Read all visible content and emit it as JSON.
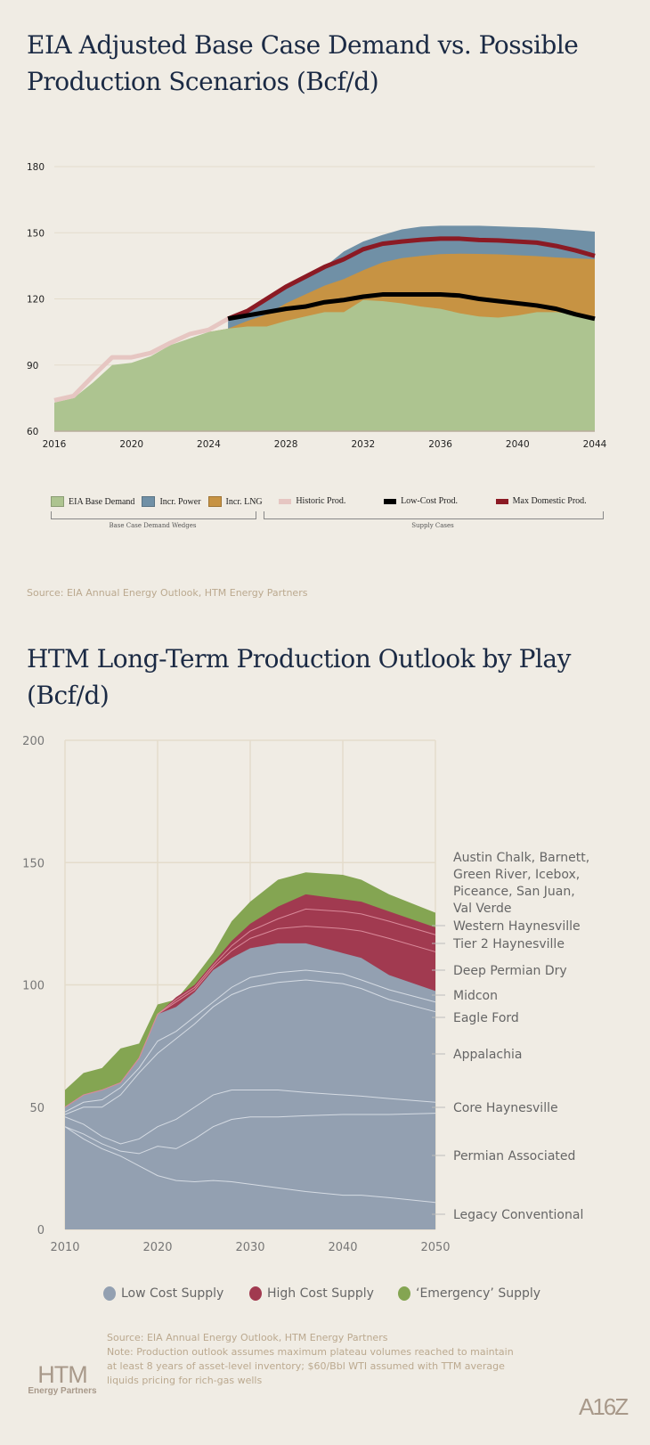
{
  "title1": "EIA Adjusted Base Case Demand vs. Possible Production Scenarios (Bcf/d)",
  "source1": "Source: EIA Annual Energy Outlook, HTM Energy Partners",
  "title2": "HTM Long-Term Production Outlook by Play (Bcf/d)",
  "footer": {
    "source": "Source: EIA Annual Energy Outlook, HTM Energy Partners",
    "note": "Note: Production outlook assumes maximum plateau volumes reached to maintain at least 8 years of asset-level inventory; $60/Bbl WTI assumed with TTM average liquids pricing for rich-gas wells"
  },
  "logos": {
    "htm_main": "HTM",
    "htm_sub": "Energy Partners",
    "a16z": "A16Z"
  },
  "colors": {
    "background": "#f0ece4",
    "base_demand": "#adc490",
    "incr_power": "#7090a6",
    "incr_lng": "#c79343",
    "historic": "#e6c6c2",
    "low_cost": "#000000",
    "max_domestic": "#8b1a24",
    "low_cost_supply": "#93a0b1",
    "high_cost_supply": "#a13a50",
    "emergency_supply": "#84a552"
  },
  "chart_data": [
    {
      "type": "area",
      "title": "EIA Adjusted Base Case Demand vs. Possible Production Scenarios (Bcf/d)",
      "xlim": [
        2016,
        2044
      ],
      "ylim": [
        60,
        180
      ],
      "xticks": [
        "2016",
        "2020",
        "2024",
        "2028",
        "2032",
        "2036",
        "2040",
        "2044"
      ],
      "yticks": [
        "60",
        "90",
        "120",
        "150",
        "180"
      ],
      "grid": true,
      "x": [
        2016,
        2017,
        2018,
        2019,
        2020,
        2021,
        2022,
        2023,
        2024,
        2025,
        2026,
        2027,
        2028,
        2029,
        2030,
        2031,
        2032,
        2033,
        2034,
        2035,
        2036,
        2037,
        2038,
        2039,
        2040,
        2041,
        2042,
        2043,
        2044
      ],
      "stacked_areas": [
        {
          "name": "EIA Base Demand",
          "top": [
            73,
            75,
            82,
            90,
            91,
            94,
            99,
            102,
            105,
            106.5,
            107.5,
            107.5,
            110,
            112,
            114,
            114,
            119.5,
            119,
            118,
            116.5,
            115.5,
            113.5,
            112,
            111.5,
            112.5,
            114,
            114,
            113,
            111
          ]
        },
        {
          "name": "Incr. LNG",
          "top": [
            null,
            null,
            null,
            null,
            null,
            null,
            null,
            null,
            105,
            106.5,
            110,
            113,
            118,
            122,
            126,
            129,
            133,
            136.5,
            138.5,
            139.5,
            140.3,
            140.5,
            140.4,
            140.2,
            139.8,
            139.4,
            138.8,
            138.4,
            138
          ]
        },
        {
          "name": "Incr. Power",
          "top": [
            null,
            null,
            null,
            null,
            null,
            null,
            null,
            null,
            null,
            111,
            114,
            119,
            124.5,
            129,
            134.5,
            141.5,
            146,
            149,
            151.5,
            152.8,
            153.2,
            153.2,
            153.2,
            152.9,
            152.6,
            152.3,
            151.8,
            151.2,
            150.5
          ]
        }
      ],
      "lines": [
        {
          "name": "Historic Prod.",
          "values": [
            74,
            76,
            85,
            93.5,
            93.5,
            95.5,
            100,
            104,
            106,
            111,
            null,
            null,
            null,
            null,
            null,
            null,
            null,
            null,
            null,
            null,
            null,
            null,
            null,
            null,
            null,
            null,
            null,
            null,
            null
          ]
        },
        {
          "name": "Max Domestic Prod.",
          "values": [
            null,
            null,
            null,
            null,
            null,
            null,
            null,
            null,
            null,
            111,
            114.5,
            120,
            125.5,
            130,
            134.5,
            138,
            142.5,
            145,
            146,
            146.8,
            147.3,
            147.3,
            146.7,
            146.5,
            146,
            145.5,
            144,
            142,
            139.5
          ]
        },
        {
          "name": "Low-Cost Prod.",
          "values": [
            null,
            null,
            null,
            null,
            null,
            null,
            null,
            null,
            null,
            111,
            112.5,
            114,
            115.5,
            116.5,
            118.5,
            119.5,
            121,
            122,
            122,
            122,
            122,
            121.5,
            120,
            119,
            118,
            117,
            115.5,
            113,
            111
          ]
        }
      ],
      "legend": {
        "groups": [
          {
            "label": "Base Case Demand Wedges",
            "items": [
              "EIA Base Demand",
              "Incr. Power",
              "Incr. LNG"
            ]
          },
          {
            "label": "Supply Cases",
            "items": [
              "Historic Prod.",
              "Low-Cost Prod.",
              "Max Domestic Prod."
            ]
          }
        ],
        "placement": "bottom"
      }
    },
    {
      "type": "area",
      "title": "HTM Long-Term Production Outlook by Play (Bcf/d)",
      "xlim": [
        2010,
        2050
      ],
      "ylim": [
        0,
        200
      ],
      "xticks": [
        "2010",
        "2020",
        "2030",
        "2040",
        "2050"
      ],
      "yticks": [
        "0",
        "50",
        "100",
        "150",
        "200"
      ],
      "grid": true,
      "stacked": true,
      "x": [
        2010,
        2012,
        2014,
        2016,
        2018,
        2020,
        2022,
        2024,
        2026,
        2028,
        2030,
        2033,
        2036,
        2040,
        2042,
        2045,
        2050
      ],
      "series_cumulative_top": [
        {
          "name": "Legacy Conventional",
          "group": "Low Cost Supply",
          "top": [
            42,
            37,
            33,
            30,
            26,
            22,
            20,
            19.5,
            20,
            19.5,
            18.5,
            17,
            15.5,
            14,
            14,
            13,
            11
          ]
        },
        {
          "name": "Permian Associated",
          "group": "Low Cost Supply",
          "top": [
            42,
            39,
            35,
            32,
            31,
            34,
            33,
            37,
            42,
            45,
            46,
            46,
            46.5,
            47,
            47,
            47,
            47.5
          ]
        },
        {
          "name": "Core Haynesville",
          "group": "Low Cost Supply",
          "top": [
            46,
            43,
            38,
            35,
            37,
            42,
            45,
            50,
            55,
            57,
            57,
            57,
            56,
            55,
            54.5,
            53.5,
            52
          ]
        },
        {
          "name": "Appalachia",
          "group": "Low Cost Supply",
          "top": [
            47,
            50,
            50,
            55,
            64,
            72,
            78,
            84,
            91,
            96,
            99,
            101,
            102,
            100.5,
            98.5,
            94,
            89
          ]
        },
        {
          "name": "Eagle Ford",
          "group": "Low Cost Supply",
          "top": [
            48,
            52,
            53,
            58,
            66,
            77,
            81,
            87,
            93,
            99,
            103,
            105,
            106,
            104.5,
            102,
            98,
            93
          ]
        },
        {
          "name": "Midcon",
          "group": "Low Cost Supply",
          "top": [
            50,
            55,
            57,
            60,
            70,
            88,
            91,
            97,
            106,
            111,
            115,
            117,
            117,
            113,
            111,
            104,
            97.5
          ]
        },
        {
          "name": "Deep Permian Dry",
          "group": "High Cost Supply",
          "top": [
            50,
            55,
            57,
            60,
            70,
            88,
            93,
            98,
            107,
            114,
            119,
            123,
            124,
            123,
            122,
            119,
            113.5
          ]
        },
        {
          "name": "Tier 2 Haynesville",
          "group": "High Cost Supply",
          "top": [
            50,
            55,
            57,
            60,
            70,
            88,
            94,
            99,
            108,
            116,
            122,
            127,
            131,
            130,
            129,
            126,
            120.5
          ]
        },
        {
          "name": "Western Haynesville",
          "group": "High Cost Supply",
          "top": [
            50,
            55,
            57,
            60,
            70,
            88,
            95,
            100,
            109,
            118,
            125,
            132,
            137,
            135,
            134,
            130,
            123.5
          ]
        },
        {
          "name": "Austin Chalk, Barnett, Green River, Icebox, Piceance, San Juan, Val Verde",
          "group": "'Emergency' Supply",
          "top": [
            57,
            64,
            66,
            74,
            76,
            92,
            94,
            103,
            113,
            126,
            134,
            143,
            146,
            145,
            143,
            137,
            129.5
          ]
        }
      ],
      "label_lines": {
        "austin": [
          "Austin Chalk, Barnett,",
          "Green River, Icebox,",
          "Piceance, San Juan,",
          "Val Verde"
        ]
      },
      "legend": {
        "items": [
          "Low Cost Supply",
          "High Cost Supply",
          "‘Emergency’ Supply"
        ],
        "placement": "bottom"
      }
    }
  ]
}
